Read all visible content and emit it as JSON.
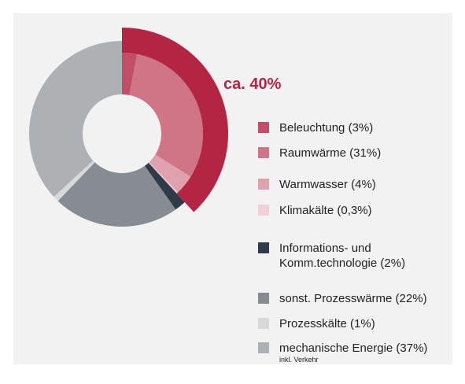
{
  "chart_data": {
    "type": "donut",
    "categories": [
      "Beleuchtung (3%)",
      "Raumwärme (31%)",
      "Warmwasser (4%)",
      "Klimakälte (0,3%)",
      "Informations- und\nKomm.technologie (2%)",
      "sonst. Prozesswärme (22%)",
      "Prozesskälte (1%)",
      "mechanische Energie (37%)"
    ],
    "values": [
      3,
      31,
      4,
      0.3,
      2,
      22,
      1,
      37
    ],
    "colors": [
      "#c24e66",
      "#cf7586",
      "#e0a1ae",
      "#f2d0d7",
      "#2f3b46",
      "#878c92",
      "#d7d9db",
      "#adb1b4"
    ],
    "category_notes": [
      null,
      null,
      null,
      null,
      null,
      null,
      null,
      "inkl. Verkehr"
    ],
    "highlight": {
      "label": "ca. 40%",
      "color": "#b42443"
    }
  }
}
